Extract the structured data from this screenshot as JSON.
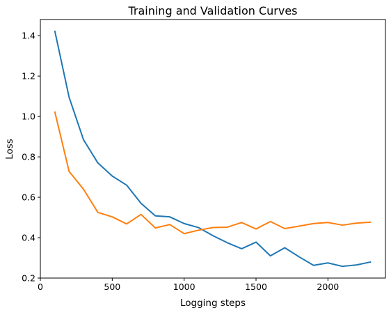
{
  "chart_data": {
    "type": "line",
    "title": "Training and Validation Curves",
    "xlabel": "Logging steps",
    "ylabel": "Loss",
    "xlim": [
      0,
      2400
    ],
    "ylim": [
      0.2,
      1.48
    ],
    "xticks": [
      0,
      500,
      1000,
      1500,
      2000
    ],
    "xtick_labels": [
      "0",
      "500",
      "1000",
      "1500",
      "2000"
    ],
    "yticks": [
      0.2,
      0.4,
      0.6,
      0.8,
      1.0,
      1.2,
      1.4
    ],
    "ytick_labels": [
      "0.2",
      "0.4",
      "0.6",
      "0.8",
      "1.0",
      "1.2",
      "1.4"
    ],
    "grid": false,
    "x": [
      100,
      200,
      300,
      400,
      500,
      600,
      700,
      800,
      900,
      1000,
      1100,
      1200,
      1300,
      1400,
      1500,
      1600,
      1700,
      1800,
      1900,
      2000,
      2100,
      2200,
      2300
    ],
    "series": [
      {
        "color": "#1f77b4",
        "values": [
          1.425,
          1.095,
          0.885,
          0.77,
          0.705,
          0.66,
          0.57,
          0.508,
          0.503,
          0.47,
          0.45,
          0.41,
          0.375,
          0.345,
          0.378,
          0.31,
          0.35,
          0.305,
          0.263,
          0.275,
          0.258,
          0.265,
          0.28
        ]
      },
      {
        "color": "#ff7f0e",
        "values": [
          1.025,
          0.728,
          0.64,
          0.525,
          0.503,
          0.468,
          0.515,
          0.448,
          0.465,
          0.42,
          0.437,
          0.45,
          0.452,
          0.475,
          0.443,
          0.48,
          0.445,
          0.457,
          0.47,
          0.475,
          0.462,
          0.472,
          0.477
        ]
      }
    ]
  }
}
